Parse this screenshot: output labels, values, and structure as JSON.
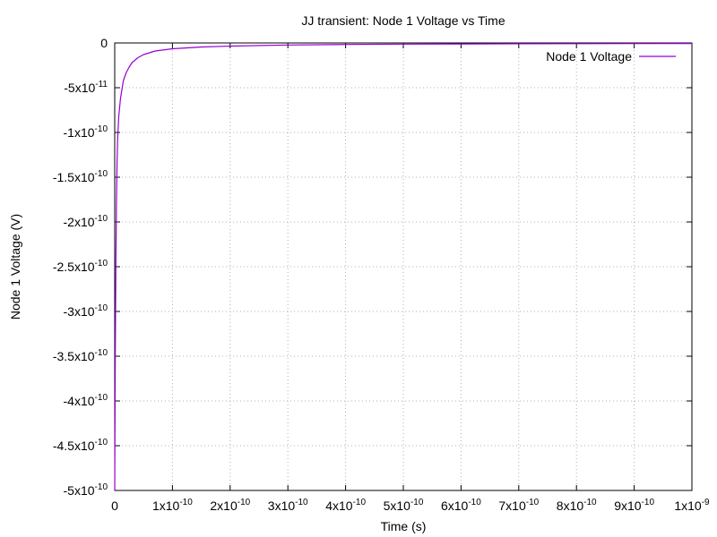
{
  "chart_data": {
    "type": "line",
    "title": "JJ transient: Node 1 Voltage vs Time",
    "xlabel": "Time (s)",
    "ylabel": "Node 1 Voltage (V)",
    "xlim": [
      0,
      1e-09
    ],
    "ylim": [
      -5e-10,
      0
    ],
    "grid": true,
    "legend_position": "top-right",
    "x_ticks": [
      {
        "value": 0,
        "mantissa": "0",
        "exp": ""
      },
      {
        "value": 1e-10,
        "mantissa": "1x10",
        "exp": "-10"
      },
      {
        "value": 2e-10,
        "mantissa": "2x10",
        "exp": "-10"
      },
      {
        "value": 3e-10,
        "mantissa": "3x10",
        "exp": "-10"
      },
      {
        "value": 4e-10,
        "mantissa": "4x10",
        "exp": "-10"
      },
      {
        "value": 5e-10,
        "mantissa": "5x10",
        "exp": "-10"
      },
      {
        "value": 6e-10,
        "mantissa": "6x10",
        "exp": "-10"
      },
      {
        "value": 7e-10,
        "mantissa": "7x10",
        "exp": "-10"
      },
      {
        "value": 8e-10,
        "mantissa": "8x10",
        "exp": "-10"
      },
      {
        "value": 9e-10,
        "mantissa": "9x10",
        "exp": "-10"
      },
      {
        "value": 1e-09,
        "mantissa": "1x10",
        "exp": "-9"
      }
    ],
    "y_ticks": [
      {
        "value": 0,
        "mantissa": "0",
        "exp": ""
      },
      {
        "value": -5e-11,
        "mantissa": "-5x10",
        "exp": "-11"
      },
      {
        "value": -1e-10,
        "mantissa": "-1x10",
        "exp": "-10"
      },
      {
        "value": -1.5e-10,
        "mantissa": "-1.5x10",
        "exp": "-10"
      },
      {
        "value": -2e-10,
        "mantissa": "-2x10",
        "exp": "-10"
      },
      {
        "value": -2.5e-10,
        "mantissa": "-2.5x10",
        "exp": "-10"
      },
      {
        "value": -3e-10,
        "mantissa": "-3x10",
        "exp": "-10"
      },
      {
        "value": -3.5e-10,
        "mantissa": "-3.5x10",
        "exp": "-10"
      },
      {
        "value": -4e-10,
        "mantissa": "-4x10",
        "exp": "-10"
      },
      {
        "value": -4.5e-10,
        "mantissa": "-4.5x10",
        "exp": "-10"
      },
      {
        "value": -5e-10,
        "mantissa": "-5x10",
        "exp": "-10"
      }
    ],
    "series": [
      {
        "name": "Node 1 Voltage",
        "color": "#9400d3",
        "x": [
          0,
          1e-12,
          2e-12,
          3e-12,
          4e-12,
          5e-12,
          7e-12,
          1e-11,
          1.5e-11,
          2e-11,
          2.5e-11,
          3e-11,
          4e-11,
          5e-11,
          7e-11,
          1e-10,
          1.5e-10,
          2e-10,
          3e-10,
          4e-10,
          5e-10,
          6e-10,
          7e-10,
          8e-10,
          9e-10,
          1e-09
        ],
        "values": [
          -5e-10,
          -3.5e-10,
          -2.45e-10,
          -1.8e-10,
          -1.35e-10,
          -1.08e-10,
          -8.2e-11,
          -6.2e-11,
          -4.2e-11,
          -3.3e-11,
          -2.7e-11,
          -2.2e-11,
          -1.65e-11,
          -1.3e-11,
          -9e-12,
          -6.5e-12,
          -4.5e-12,
          -3.5e-12,
          -2.3e-12,
          -1.7e-12,
          -1.3e-12,
          -1.1e-12,
          -9e-13,
          -8e-13,
          -7e-13,
          -6e-13
        ]
      }
    ]
  }
}
